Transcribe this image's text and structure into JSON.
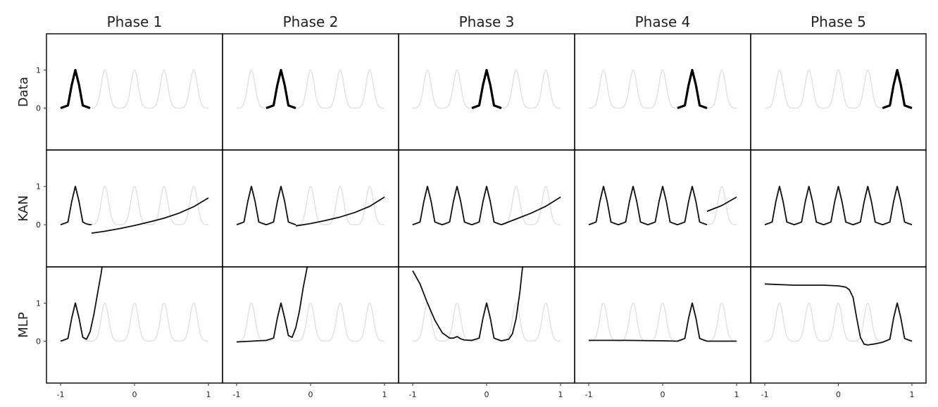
{
  "chart_data": {
    "type": "line",
    "layout": "grid 3 rows x 5 columns",
    "column_titles": [
      "Phase 1",
      "Phase 2",
      "Phase 3",
      "Phase 4",
      "Phase 5"
    ],
    "row_labels": [
      "Data",
      "KAN",
      "MLP"
    ],
    "xlim": [
      -1,
      1
    ],
    "ylim": [
      -1.1,
      1.95
    ],
    "x_ticks": [
      -1,
      0,
      1
    ],
    "x_tick_labels": [
      "-1",
      "0",
      "1"
    ],
    "y_ticks": [
      0,
      1
    ],
    "y_tick_labels": [
      "0",
      "1"
    ],
    "peak_centers": [
      -0.8,
      -0.4,
      0.0,
      0.4,
      0.8
    ],
    "peak_width_sigma": 0.05,
    "background_series": "all five gaussian peaks shown in light gray in every panel",
    "colors": {
      "foreground": "#111111",
      "background_peaks": "#e4e4e4",
      "frame": "#000000"
    },
    "panels": [
      [
        {
          "row": "Data",
          "phase": "Phase 1",
          "series": [
            {
              "x": [
                -1.0,
                -0.9,
                -0.85,
                -0.8,
                -0.75,
                -0.7,
                -0.6
              ],
              "y": [
                0,
                0.07,
                0.6,
                1.0,
                0.6,
                0.07,
                0
              ]
            }
          ]
        },
        {
          "row": "Data",
          "phase": "Phase 2",
          "series": [
            {
              "x": [
                -0.6,
                -0.5,
                -0.45,
                -0.4,
                -0.35,
                -0.3,
                -0.2
              ],
              "y": [
                0,
                0.07,
                0.6,
                1.0,
                0.6,
                0.07,
                0
              ]
            }
          ]
        },
        {
          "row": "Data",
          "phase": "Phase 3",
          "series": [
            {
              "x": [
                -0.2,
                -0.1,
                -0.05,
                0.0,
                0.05,
                0.1,
                0.2
              ],
              "y": [
                0,
                0.07,
                0.6,
                1.0,
                0.6,
                0.07,
                0
              ]
            }
          ]
        },
        {
          "row": "Data",
          "phase": "Phase 4",
          "series": [
            {
              "x": [
                0.2,
                0.3,
                0.35,
                0.4,
                0.45,
                0.5,
                0.6
              ],
              "y": [
                0,
                0.07,
                0.6,
                1.0,
                0.6,
                0.07,
                0
              ]
            }
          ]
        },
        {
          "row": "Data",
          "phase": "Phase 5",
          "series": [
            {
              "x": [
                0.6,
                0.7,
                0.75,
                0.8,
                0.85,
                0.9,
                1.0
              ],
              "y": [
                0,
                0.07,
                0.6,
                1.0,
                0.6,
                0.07,
                0
              ]
            }
          ]
        }
      ],
      [
        {
          "row": "KAN",
          "phase": "Phase 1",
          "series": [
            {
              "x": [
                -1.0,
                -0.9,
                -0.85,
                -0.8,
                -0.75,
                -0.7,
                -0.65,
                -0.6,
                -0.58
              ],
              "y": [
                0,
                0.07,
                0.6,
                1.0,
                0.6,
                0.07,
                0.02,
                0.0,
                0.0
              ]
            },
            {
              "x": [
                -0.58,
                -0.4,
                -0.2,
                0.0,
                0.2,
                0.4,
                0.6,
                0.8,
                1.0
              ],
              "y": [
                -0.22,
                -0.17,
                -0.1,
                -0.02,
                0.07,
                0.17,
                0.3,
                0.47,
                0.7
              ]
            }
          ]
        },
        {
          "row": "KAN",
          "phase": "Phase 2",
          "series": [
            {
              "x": [
                -1.0,
                -0.9,
                -0.85,
                -0.8,
                -0.75,
                -0.7,
                -0.6,
                -0.5,
                -0.45,
                -0.4,
                -0.35,
                -0.3,
                -0.2
              ],
              "y": [
                0,
                0.07,
                0.6,
                1.0,
                0.6,
                0.07,
                0,
                0.07,
                0.6,
                1.0,
                0.6,
                0.07,
                0
              ]
            },
            {
              "x": [
                -0.2,
                0.0,
                0.2,
                0.4,
                0.6,
                0.8,
                1.0
              ],
              "y": [
                -0.03,
                0.03,
                0.11,
                0.2,
                0.32,
                0.48,
                0.72
              ]
            }
          ]
        },
        {
          "row": "KAN",
          "phase": "Phase 3",
          "series": [
            {
              "x": [
                -1.0,
                -0.9,
                -0.85,
                -0.8,
                -0.75,
                -0.7,
                -0.6,
                -0.5,
                -0.45,
                -0.4,
                -0.35,
                -0.3,
                -0.2,
                -0.1,
                -0.05,
                0.0,
                0.05,
                0.1,
                0.2
              ],
              "y": [
                0,
                0.07,
                0.6,
                1.0,
                0.6,
                0.07,
                0,
                0.07,
                0.6,
                1.0,
                0.6,
                0.07,
                0,
                0.07,
                0.6,
                1.0,
                0.6,
                0.07,
                0
              ]
            },
            {
              "x": [
                0.2,
                0.4,
                0.6,
                0.8,
                1.0
              ],
              "y": [
                0.0,
                0.15,
                0.3,
                0.48,
                0.72
              ]
            }
          ]
        },
        {
          "row": "KAN",
          "phase": "Phase 4",
          "series": [
            {
              "x": [
                -1.0,
                -0.9,
                -0.85,
                -0.8,
                -0.75,
                -0.7,
                -0.6,
                -0.5,
                -0.45,
                -0.4,
                -0.35,
                -0.3,
                -0.2,
                -0.1,
                -0.05,
                0.0,
                0.05,
                0.1,
                0.2,
                0.3,
                0.35,
                0.4,
                0.45,
                0.5,
                0.6
              ],
              "y": [
                0,
                0.07,
                0.6,
                1.0,
                0.6,
                0.07,
                0,
                0.07,
                0.6,
                1.0,
                0.6,
                0.07,
                0,
                0.07,
                0.6,
                1.0,
                0.6,
                0.07,
                0,
                0.07,
                0.6,
                1.0,
                0.6,
                0.07,
                0
              ]
            },
            {
              "x": [
                0.6,
                0.8,
                1.0
              ],
              "y": [
                0.35,
                0.5,
                0.72
              ]
            }
          ]
        },
        {
          "row": "KAN",
          "phase": "Phase 5",
          "series": [
            {
              "x": [
                -1.0,
                -0.9,
                -0.85,
                -0.8,
                -0.75,
                -0.7,
                -0.6,
                -0.5,
                -0.45,
                -0.4,
                -0.35,
                -0.3,
                -0.2,
                -0.1,
                -0.05,
                0.0,
                0.05,
                0.1,
                0.2,
                0.3,
                0.35,
                0.4,
                0.45,
                0.5,
                0.6,
                0.7,
                0.75,
                0.8,
                0.85,
                0.9,
                1.0
              ],
              "y": [
                0,
                0.07,
                0.6,
                1.0,
                0.6,
                0.07,
                0,
                0.07,
                0.6,
                1.0,
                0.6,
                0.07,
                0,
                0.07,
                0.6,
                1.0,
                0.6,
                0.07,
                0,
                0.07,
                0.6,
                1.0,
                0.6,
                0.07,
                0,
                0.07,
                0.6,
                1.0,
                0.6,
                0.07,
                0
              ]
            }
          ]
        }
      ],
      [
        {
          "row": "MLP",
          "phase": "Phase 1",
          "series": [
            {
              "x": [
                -1.0,
                -0.9,
                -0.85,
                -0.8,
                -0.75,
                -0.7,
                -0.65,
                -0.6,
                -0.55,
                -0.5,
                -0.45,
                -0.42
              ],
              "y": [
                0,
                0.07,
                0.6,
                1.0,
                0.6,
                0.1,
                0.05,
                0.25,
                0.7,
                1.25,
                1.8,
                2.2
              ]
            }
          ]
        },
        {
          "row": "MLP",
          "phase": "Phase 2",
          "series": [
            {
              "x": [
                -1.0,
                -0.8,
                -0.6,
                -0.5,
                -0.45,
                -0.4,
                -0.35,
                -0.3,
                -0.25,
                -0.2,
                -0.15,
                -0.1,
                -0.02
              ],
              "y": [
                -0.02,
                0.0,
                0.02,
                0.08,
                0.6,
                1.0,
                0.6,
                0.15,
                0.1,
                0.35,
                0.8,
                1.4,
                2.2
              ]
            }
          ]
        },
        {
          "row": "MLP",
          "phase": "Phase 3",
          "series": [
            {
              "x": [
                -1.0,
                -0.9,
                -0.8,
                -0.7,
                -0.6,
                -0.5,
                -0.45,
                -0.4,
                -0.35,
                -0.3,
                -0.2,
                -0.1,
                -0.05,
                0.0,
                0.05,
                0.1,
                0.2,
                0.3,
                0.35,
                0.4,
                0.45,
                0.5
              ],
              "y": [
                1.85,
                1.5,
                1.0,
                0.55,
                0.22,
                0.08,
                0.08,
                0.12,
                0.06,
                0.03,
                0.02,
                0.08,
                0.6,
                1.0,
                0.6,
                0.08,
                0.01,
                0.05,
                0.2,
                0.6,
                1.3,
                2.2
              ]
            }
          ]
        },
        {
          "row": "MLP",
          "phase": "Phase 4",
          "series": [
            {
              "x": [
                -1.0,
                -0.5,
                0.0,
                0.2,
                0.3,
                0.35,
                0.4,
                0.45,
                0.5,
                0.6,
                1.0
              ],
              "y": [
                0.02,
                0.02,
                0.01,
                0.0,
                0.07,
                0.6,
                1.0,
                0.6,
                0.07,
                0.0,
                0.0
              ]
            }
          ]
        },
        {
          "row": "MLP",
          "phase": "Phase 5",
          "series": [
            {
              "x": [
                -1.0,
                -0.6,
                -0.2,
                0.0,
                0.1,
                0.15,
                0.2,
                0.25,
                0.3,
                0.35,
                0.4,
                0.5,
                0.6,
                0.7,
                0.75,
                0.8,
                0.85,
                0.9,
                1.0
              ],
              "y": [
                1.5,
                1.47,
                1.47,
                1.45,
                1.42,
                1.35,
                1.15,
                0.6,
                0.1,
                -0.08,
                -0.1,
                -0.07,
                -0.03,
                0.05,
                0.6,
                1.0,
                0.6,
                0.07,
                0.0
              ]
            }
          ]
        }
      ]
    ]
  }
}
